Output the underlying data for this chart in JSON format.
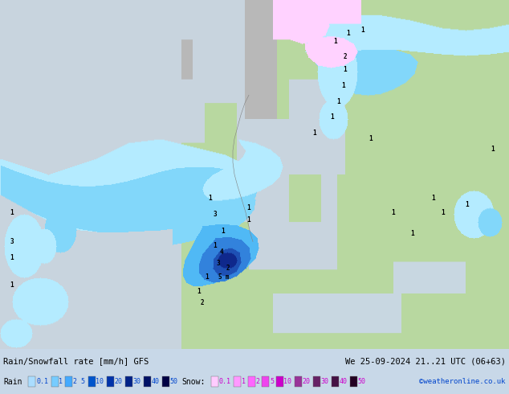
{
  "title_left": "Rain/Snowfall rate [mm/h] GFS",
  "title_right": "We 25-09-2024 21..21 UTC (06+63)",
  "credit": "©weatheronline.co.uk",
  "ocean_color": "#c8d8e8",
  "land_color": "#b4d4b4",
  "land_green_color": "#90c870",
  "darker_land": "#78b050",
  "fig_width": 6.34,
  "fig_height": 4.9,
  "bottom_bar_color": "#d0d0d0",
  "rain_legend": [
    {
      "label": "0.1",
      "color": "#aaddff"
    },
    {
      "label": "1",
      "color": "#77ccff"
    },
    {
      "label": "2 5",
      "color": "#44aaff"
    },
    {
      "label": "10",
      "color": "#0055cc"
    },
    {
      "label": "20",
      "color": "#0033aa"
    },
    {
      "label": "30",
      "color": "#002288"
    },
    {
      "label": "40",
      "color": "#001166"
    },
    {
      "label": "50",
      "color": "#000044"
    }
  ],
  "snow_legend": [
    {
      "label": "0.1",
      "color": "#ffccff"
    },
    {
      "label": "1",
      "color": "#ff99ff"
    },
    {
      "label": "2",
      "color": "#ff66ff"
    },
    {
      "label": "5",
      "color": "#ee44ee"
    },
    {
      "label": "10",
      "color": "#cc00cc"
    },
    {
      "label": "20",
      "color": "#993399"
    },
    {
      "label": "30",
      "color": "#662266"
    },
    {
      "label": "40",
      "color": "#441144"
    },
    {
      "label": "50",
      "color": "#220022"
    }
  ]
}
